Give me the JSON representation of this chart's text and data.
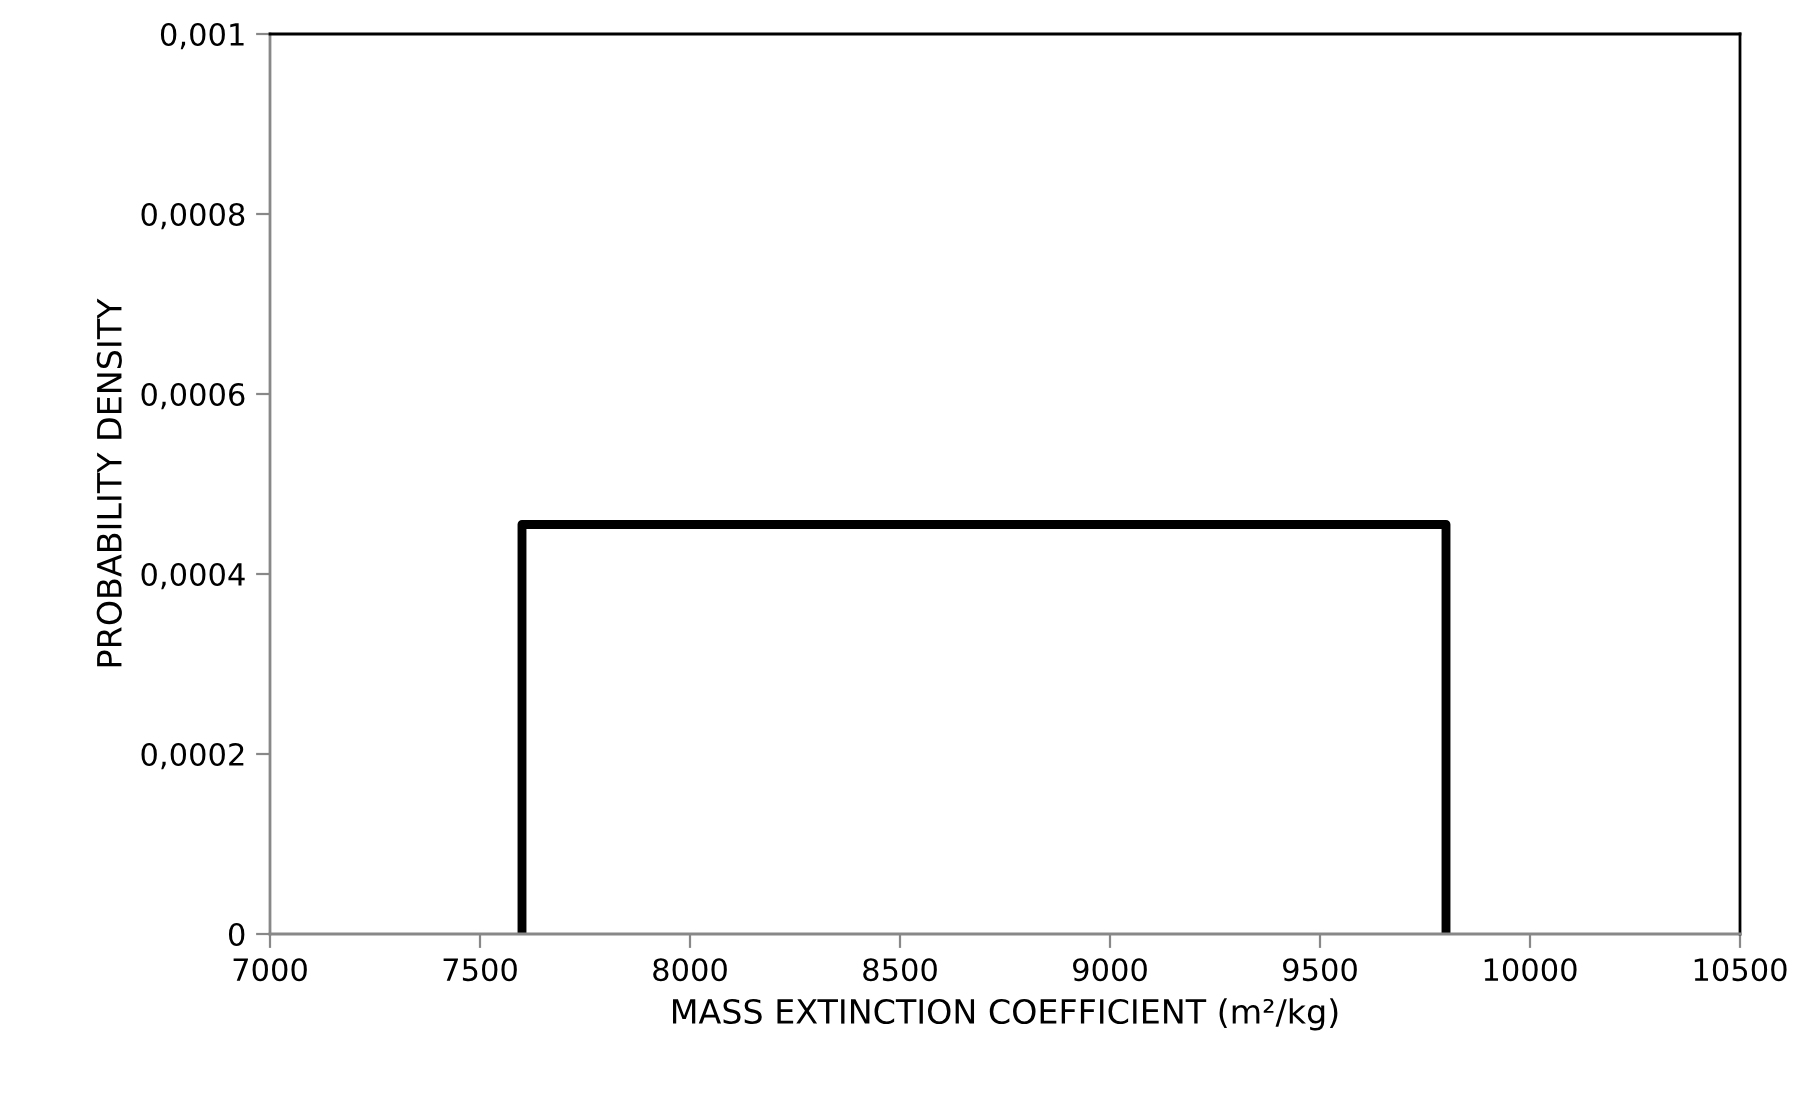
{
  "chart_data": {
    "type": "histogram",
    "xlabel": "MASS EXTINCTION COEFFICIENT (m²/kg)",
    "ylabel": "PROBABILITY DENSITY",
    "bins": [
      7600,
      9800
    ],
    "values": [
      0.000455
    ],
    "color": "#000000",
    "xlim": [
      7000,
      10500
    ],
    "xticks": [
      7000,
      7500,
      8000,
      8500,
      9000,
      9500,
      10000,
      10500
    ],
    "ylim": [
      0,
      0.001
    ],
    "yticks": [
      {
        "value": 0,
        "label": "0"
      },
      {
        "value": 0.0002,
        "label": "0,0002"
      },
      {
        "value": 0.0004,
        "label": "0,0004"
      },
      {
        "value": 0.0006,
        "label": "0,0006"
      },
      {
        "value": 0.0008,
        "label": "0,0008"
      },
      {
        "value": 0.001,
        "label": "0,001"
      }
    ],
    "grid": false
  }
}
